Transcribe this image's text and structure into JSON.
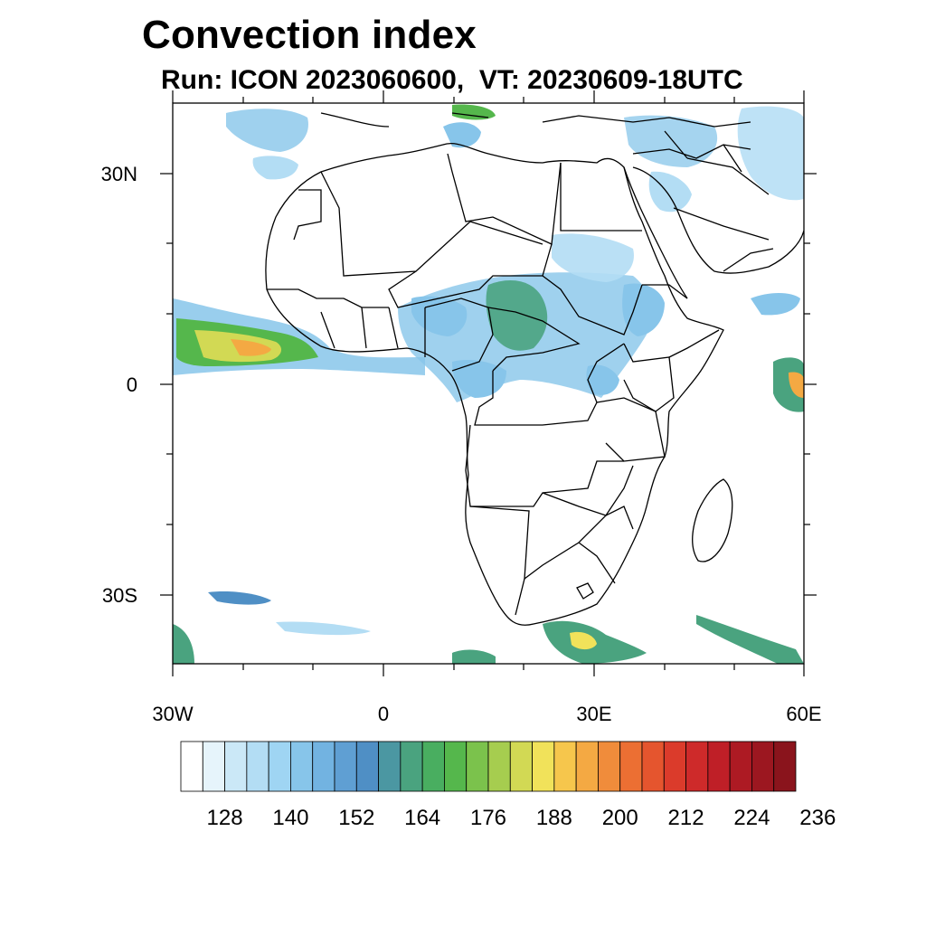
{
  "title": "Convection index",
  "subtitle": "Run: ICON 2023060600,  VT: 20230609-18UTC",
  "map": {
    "lon_range": [
      -30,
      60
    ],
    "lat_range": [
      -40,
      40
    ],
    "lat_labels": [
      "30N",
      "0",
      "30S"
    ],
    "lon_labels": [
      "30W",
      "0",
      "30E",
      "60E"
    ]
  },
  "colorbar": {
    "colors": [
      "#ffffff",
      "#e6f4fb",
      "#cbe8f7",
      "#b3ddf4",
      "#9fd5f3",
      "#87c5ea",
      "#72b3e1",
      "#5f9fd3",
      "#4f8fc5",
      "#4b97a2",
      "#4aa37f",
      "#49ae60",
      "#55b74c",
      "#7bc24c",
      "#a6cd4f",
      "#d2d954",
      "#f1e25a",
      "#f6c64c",
      "#f4a943",
      "#f08c3b",
      "#ec6f33",
      "#e5552e",
      "#db3b2b",
      "#ce2a2a",
      "#bf1f27",
      "#ad1a23",
      "#9c1720",
      "#8a141c"
    ],
    "tick_labels": [
      "128",
      "140",
      "152",
      "164",
      "176",
      "188",
      "200",
      "212",
      "224",
      "236"
    ]
  }
}
